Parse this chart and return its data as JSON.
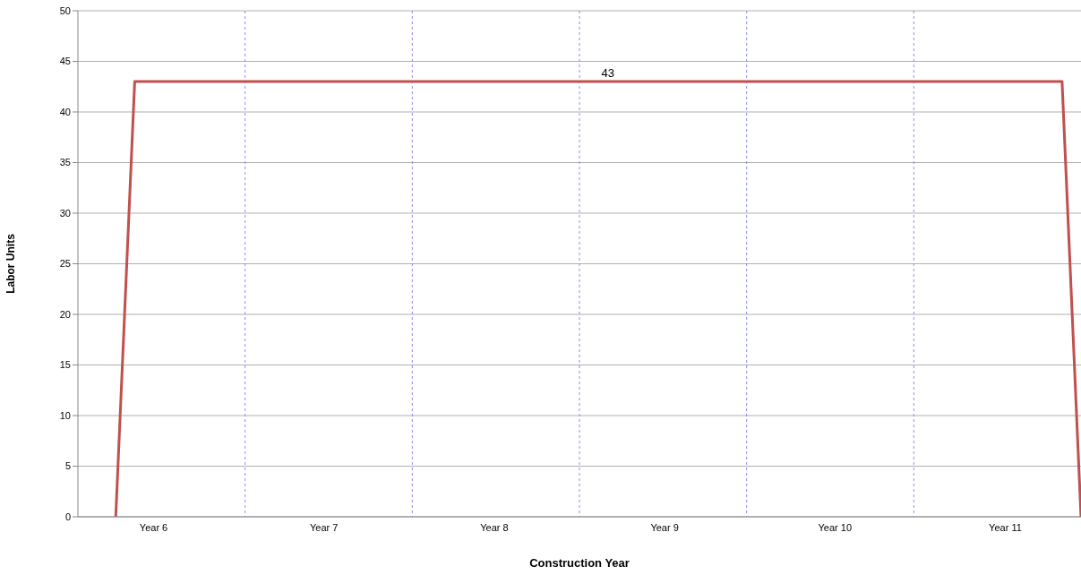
{
  "chart_data": {
    "type": "line",
    "xlabel": "Construction Year",
    "ylabel": "Labor Units",
    "categories": [
      null,
      null,
      null,
      null,
      "Year 6",
      null,
      null,
      null,
      null,
      null,
      null,
      null,
      null,
      "Year 7",
      null,
      null,
      null,
      null,
      null,
      null,
      null,
      null,
      "Year 8",
      null,
      null,
      null,
      null,
      null,
      null,
      null,
      null,
      "Year 9",
      null,
      null,
      null,
      null,
      null,
      null,
      null,
      null,
      "Year 10",
      null,
      null,
      null,
      null,
      null,
      null,
      null,
      null,
      "Year 11",
      null,
      null,
      null,
      null
    ],
    "series": [
      {
        "color": "#c0504d",
        "values": [
          null,
          null,
          0,
          43,
          43,
          43,
          43,
          43,
          43,
          43,
          43,
          43,
          43,
          43,
          43,
          43,
          43,
          43,
          43,
          43,
          43,
          43,
          43,
          43,
          43,
          43,
          43,
          43,
          43,
          43,
          43,
          43,
          43,
          43,
          43,
          43,
          43,
          43,
          43,
          43,
          43,
          43,
          43,
          43,
          43,
          43,
          43,
          43,
          43,
          43,
          43,
          43,
          43,
          0
        ],
        "value_labels": [
          null,
          null,
          null,
          null,
          null,
          null,
          null,
          null,
          null,
          null,
          null,
          null,
          null,
          null,
          null,
          null,
          null,
          null,
          null,
          null,
          null,
          null,
          null,
          null,
          null,
          null,
          null,
          null,
          "43",
          null,
          null,
          null,
          null,
          null,
          null,
          null,
          null,
          null,
          null,
          null,
          null,
          null,
          null,
          null,
          null,
          null,
          null,
          null,
          null,
          null,
          null,
          null,
          null,
          null
        ]
      }
    ],
    "ylim": [
      0,
      50
    ],
    "yticks": [
      0,
      5,
      10,
      15,
      20,
      25,
      30,
      35,
      40,
      45,
      50
    ],
    "grid": true,
    "marker": "none",
    "line_style": "solid"
  }
}
